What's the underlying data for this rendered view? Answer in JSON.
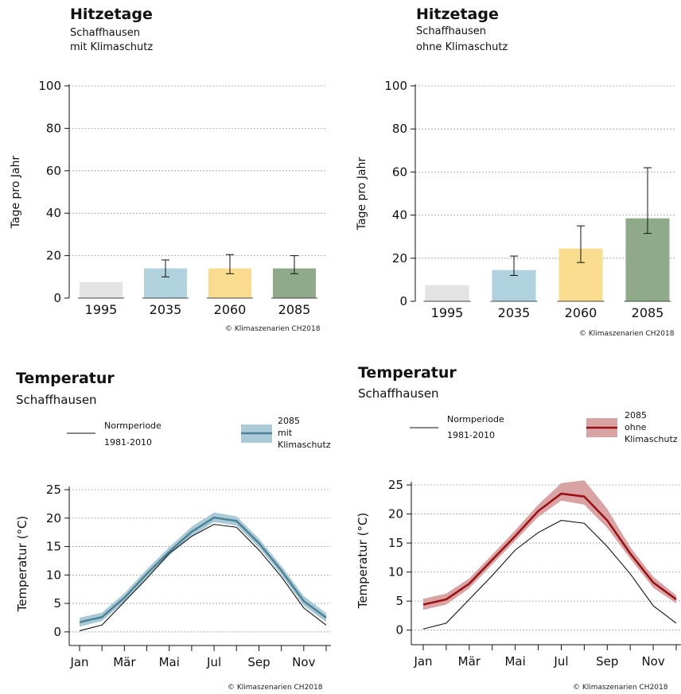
{
  "panels": {
    "heat_left": {
      "title": "Hitzetage",
      "subtitle": [
        "Schaffhausen",
        "mit Klimaschutz"
      ],
      "copyright": "© Klimaszenarien CH2018"
    },
    "heat_right": {
      "title": "Hitzetage",
      "subtitle": [
        "Schaffhausen",
        "ohne Klimaschutz"
      ],
      "copyright": "© Klimaszenarien CH2018"
    },
    "temp_left": {
      "title": "Temperatur",
      "subtitle": "Schaffhausen",
      "legend_norm": [
        "Normperiode",
        "1981-2010"
      ],
      "legend_scen": [
        "2085",
        "mit",
        "Klimaschutz"
      ],
      "copyright": "© Klimaszenarien CH2018"
    },
    "temp_right": {
      "title": "Temperatur",
      "subtitle": "Schaffhausen",
      "legend_norm": [
        "Normperiode",
        "1981-2010"
      ],
      "legend_scen": [
        "2085",
        "ohne",
        "Klimaschutz"
      ],
      "copyright": "© Klimaszenarien CH2018"
    }
  },
  "chart_data": [
    {
      "id": "heat_left",
      "type": "bar",
      "ylabel": "Tage pro Jahr",
      "ylim": [
        0,
        100
      ],
      "yticks": [
        0,
        20,
        40,
        60,
        80,
        100
      ],
      "grid": true,
      "categories": [
        "1995",
        "2035",
        "2060",
        "2085"
      ],
      "values": [
        7.5,
        14,
        14,
        14
      ],
      "error_low": [
        null,
        10,
        11.5,
        11.5
      ],
      "error_high": [
        null,
        18,
        20.5,
        20
      ],
      "colors": [
        "#e3e3e3",
        "#afd2de",
        "#f9dc8e",
        "#8eaa88"
      ]
    },
    {
      "id": "heat_right",
      "type": "bar",
      "ylabel": "Tage pro Jahr",
      "ylim": [
        0,
        100
      ],
      "yticks": [
        0,
        20,
        40,
        60,
        80,
        100
      ],
      "grid": true,
      "categories": [
        "1995",
        "2035",
        "2060",
        "2085"
      ],
      "values": [
        7.5,
        14.5,
        24.5,
        38.5
      ],
      "error_low": [
        null,
        12,
        18,
        31.5
      ],
      "error_high": [
        null,
        21,
        35,
        62
      ],
      "colors": [
        "#e3e3e3",
        "#afd2de",
        "#f9dc8e",
        "#8eaa88"
      ]
    },
    {
      "id": "temp_left",
      "type": "line",
      "ylabel": "Temperatur (°C)",
      "ylim": [
        -1,
        25
      ],
      "yticks": [
        0,
        5,
        10,
        15,
        20,
        25
      ],
      "grid": true,
      "xticklabels": [
        "Jan",
        "Mär",
        "Mai",
        "Jul",
        "Sep",
        "Nov"
      ],
      "months": [
        1,
        2,
        3,
        4,
        5,
        6,
        7,
        8,
        9,
        10,
        11,
        12
      ],
      "series": [
        {
          "name": "Normperiode 1981-2010",
          "color": "#111111",
          "values": [
            0.2,
            1.2,
            5.3,
            9.4,
            13.8,
            16.8,
            18.9,
            18.4,
            14.4,
            9.7,
            4.2,
            1.2
          ]
        },
        {
          "name": "2085 mit Klimaschutz",
          "color": "#4d8396",
          "band_color": "#a9cad6",
          "values": [
            1.7,
            2.6,
            6.0,
            10.2,
            14.1,
            17.6,
            20.1,
            19.5,
            15.6,
            10.8,
            5.4,
            2.5
          ],
          "low": [
            0.9,
            1.9,
            5.3,
            9.5,
            13.4,
            16.8,
            19.3,
            18.7,
            14.8,
            10.0,
            4.6,
            1.7
          ],
          "high": [
            2.5,
            3.4,
            6.8,
            11.0,
            14.9,
            18.5,
            21.0,
            20.3,
            16.4,
            11.6,
            6.3,
            3.3
          ]
        }
      ]
    },
    {
      "id": "temp_right",
      "type": "line",
      "ylabel": "Temperatur (°C)",
      "ylim": [
        -1,
        25
      ],
      "yticks": [
        0,
        5,
        10,
        15,
        20,
        25
      ],
      "grid": true,
      "xticklabels": [
        "Jan",
        "Mär",
        "Mai",
        "Jul",
        "Sep",
        "Nov"
      ],
      "months": [
        1,
        2,
        3,
        4,
        5,
        6,
        7,
        8,
        9,
        10,
        11,
        12
      ],
      "series": [
        {
          "name": "Normperiode 1981-2010",
          "color": "#111111",
          "values": [
            0.2,
            1.2,
            5.3,
            9.4,
            13.8,
            16.8,
            18.9,
            18.4,
            14.4,
            9.7,
            4.2,
            1.2
          ]
        },
        {
          "name": "2085 ohne Klimaschutz",
          "color": "#9b0f13",
          "band_color": "#d9a3a4",
          "values": [
            4.4,
            5.3,
            8.0,
            12.1,
            16.2,
            20.5,
            23.5,
            23.0,
            18.9,
            13.2,
            8.2,
            5.3
          ],
          "low": [
            3.5,
            4.4,
            7.2,
            11.3,
            15.4,
            19.5,
            22.3,
            21.6,
            17.6,
            12.3,
            7.3,
            4.6
          ],
          "high": [
            5.4,
            6.3,
            8.9,
            13.0,
            17.2,
            21.6,
            25.3,
            25.8,
            20.9,
            14.3,
            9.2,
            6.0
          ]
        }
      ]
    }
  ]
}
